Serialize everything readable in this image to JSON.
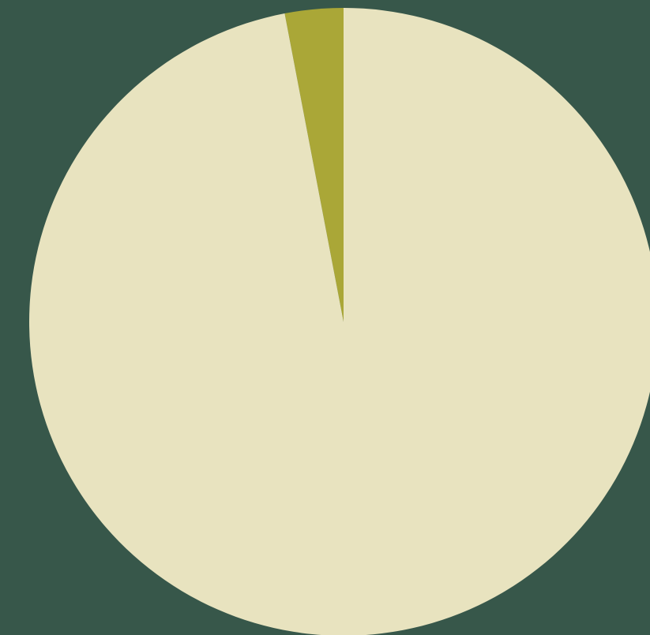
{
  "colors": {
    "background": "#37574a",
    "slice_main": "#e8e3bf",
    "slice_minor": "#aaa737"
  },
  "chart_data": {
    "type": "pie",
    "start_angle_deg": 0,
    "direction": "counterclockwise",
    "slices": [
      {
        "value": 3,
        "color": "#aaa737"
      },
      {
        "value": 97,
        "color": "#e8e3bf"
      }
    ],
    "title": "",
    "legend": "none"
  }
}
